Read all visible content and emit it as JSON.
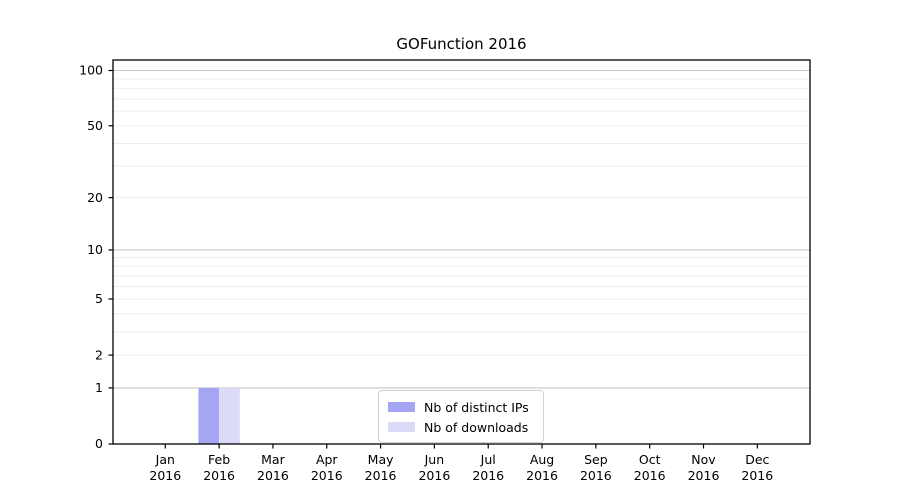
{
  "chart_data": {
    "type": "bar",
    "title": "GOFunction 2016",
    "categories": [
      "Jan",
      "Feb",
      "Mar",
      "Apr",
      "May",
      "Jun",
      "Jul",
      "Aug",
      "Sep",
      "Oct",
      "Nov",
      "Dec"
    ],
    "x_tick_year": "2016",
    "series": [
      {
        "name": "Nb of distinct IPs",
        "color": "#a5a5f3",
        "values": [
          0,
          1,
          0,
          0,
          0,
          0,
          0,
          0,
          0,
          0,
          0,
          0
        ]
      },
      {
        "name": "Nb of downloads",
        "color": "#dbdbf8",
        "values": [
          0,
          1,
          0,
          0,
          0,
          0,
          0,
          0,
          0,
          0,
          0,
          0
        ]
      }
    ],
    "yscale": "log1p",
    "ylim": [
      0,
      114
    ],
    "yticks": [
      0,
      1,
      2,
      5,
      10,
      20,
      50,
      100
    ],
    "grid": {
      "on": true,
      "minor_values": [
        2,
        3,
        4,
        5,
        6,
        7,
        8,
        9,
        20,
        30,
        40,
        50,
        60,
        70,
        80,
        90
      ],
      "major_values": [
        1,
        10,
        100
      ],
      "minor_color": "#ededed",
      "major_color": "#c6c6c6"
    },
    "legend": {
      "position": "lower-center-inside"
    },
    "colors": {
      "axis": "#000000",
      "text": "#000000",
      "background": "#ffffff"
    }
  }
}
